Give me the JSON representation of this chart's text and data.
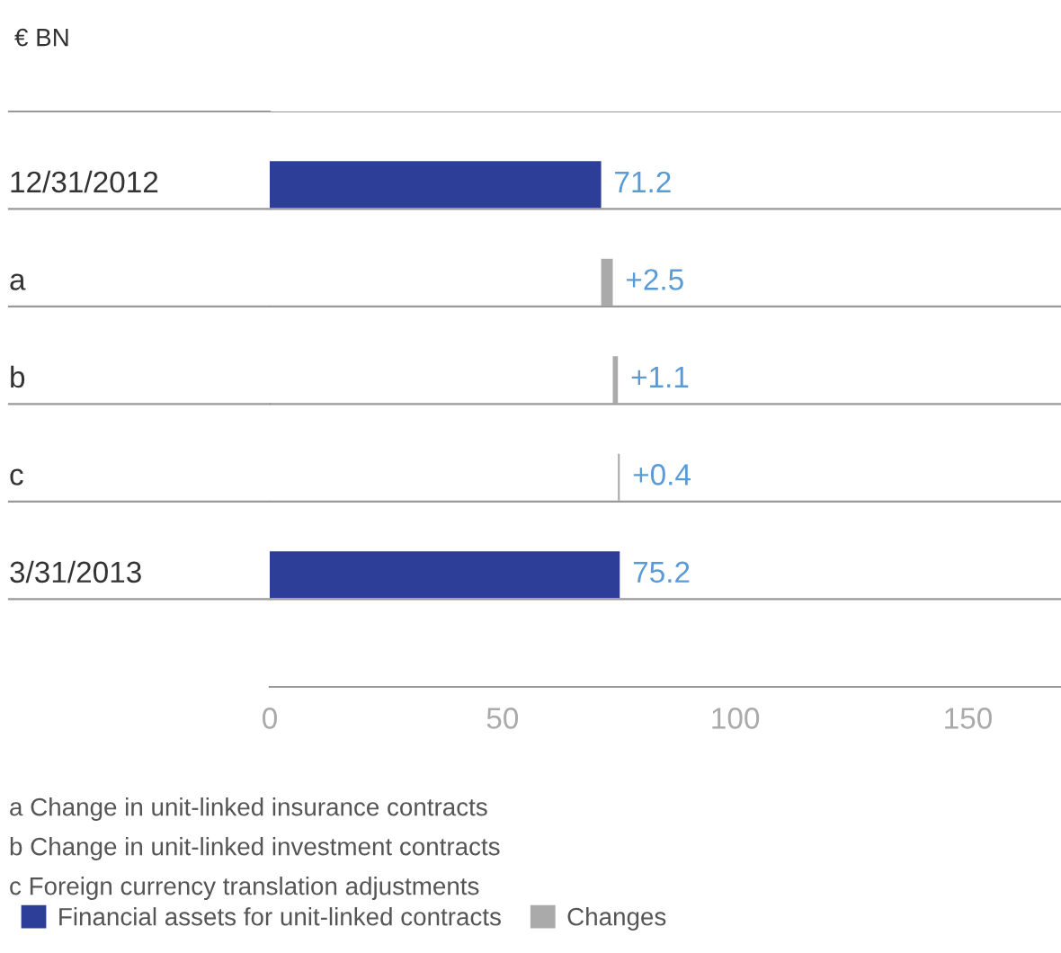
{
  "chart_data": {
    "type": "bar",
    "orientation": "horizontal",
    "ylabel": "€ BN",
    "categories": [
      "12/31/2012",
      "a",
      "b",
      "c",
      "3/31/2013"
    ],
    "series": [
      {
        "name": "Financial assets for unit-linked contracts",
        "color": "#2c3e98",
        "values": [
          71.2,
          null,
          null,
          null,
          75.2
        ],
        "value_labels": [
          "71.2",
          null,
          null,
          null,
          "75.2"
        ]
      },
      {
        "name": "Changes",
        "color": "#aaaaaa",
        "values": [
          null,
          2.5,
          1.1,
          0.4,
          null
        ],
        "base": [
          null,
          71.2,
          73.7,
          74.8,
          null
        ],
        "value_labels": [
          null,
          "+2.5",
          "+1.1",
          "+0.4",
          null
        ]
      }
    ],
    "xlim": [
      0,
      170
    ],
    "xticks": [
      0,
      50,
      100,
      150
    ],
    "grid": "y",
    "legend": "bottom",
    "annotations": [
      "a Change in unit-linked insurance contracts",
      "b Change in unit-linked investment contracts",
      "c Foreign currency translation adjustments"
    ]
  }
}
